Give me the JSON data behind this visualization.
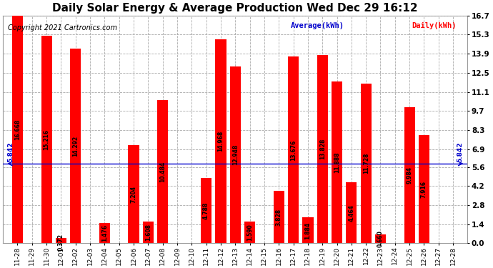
{
  "title": "Daily Solar Energy & Average Production Wed Dec 29 16:12",
  "copyright": "Copyright 2021 Cartronics.com",
  "categories": [
    "11-28",
    "11-29",
    "11-30",
    "12-01",
    "12-02",
    "12-03",
    "12-04",
    "12-05",
    "12-06",
    "12-07",
    "12-08",
    "12-09",
    "12-10",
    "12-11",
    "12-12",
    "12-13",
    "12-14",
    "12-15",
    "12-16",
    "12-17",
    "12-18",
    "12-19",
    "12-20",
    "12-21",
    "12-22",
    "12-23",
    "12-24",
    "12-25",
    "12-26",
    "12-27",
    "12-28"
  ],
  "values": [
    16.668,
    0.0,
    15.216,
    0.372,
    14.292,
    0.0,
    1.476,
    0.0,
    7.204,
    1.608,
    10.484,
    0.0,
    0.0,
    4.788,
    14.968,
    12.948,
    1.59,
    0.0,
    3.828,
    13.676,
    1.884,
    13.828,
    11.888,
    4.464,
    11.728,
    0.66,
    0.0,
    9.984,
    7.916,
    0.0,
    0.0
  ],
  "average": 5.842,
  "bar_color": "#ff0000",
  "average_color": "#0000cc",
  "bg_color": "#ffffff",
  "grid_color": "#aaaaaa",
  "ylim": [
    0.0,
    16.7
  ],
  "yticks": [
    0.0,
    1.4,
    2.8,
    4.2,
    5.6,
    6.9,
    8.3,
    9.7,
    11.1,
    12.5,
    13.9,
    15.3,
    16.7
  ],
  "legend_avg_label": "Average(kWh)",
  "legend_daily_label": "Daily(kWh)",
  "title_fontsize": 11,
  "copyright_fontsize": 7,
  "tick_fontsize": 6.5,
  "value_fontsize": 5.5
}
